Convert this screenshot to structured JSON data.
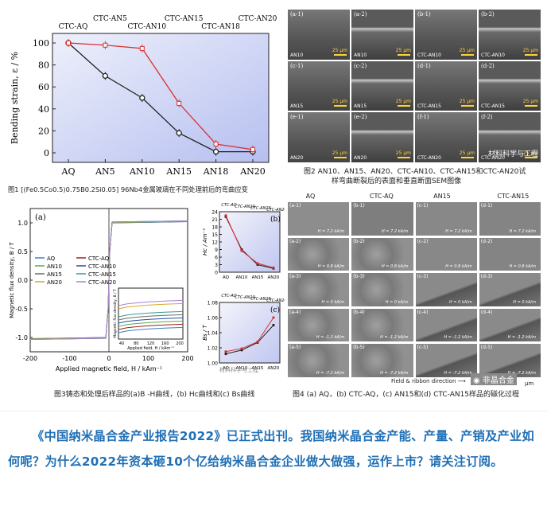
{
  "fig1": {
    "series_labels": [
      "CTC-AQ",
      "CTC-AN5",
      "CTC-AN10",
      "CTC-AN15",
      "CTC-AN18",
      "CTC-AN20"
    ],
    "ylabel": "Bending strain, ε / %",
    "caption": "图1 [(Fe0.5Co0.5)0.75B0.2Si0.05] 96Nb4金属玻璃在不同处理前后的弯曲应变",
    "chart_data": {
      "type": "line",
      "categories": [
        "AQ",
        "AN5",
        "AN10",
        "AN15",
        "AN18",
        "AN20"
      ],
      "ylabel": "Bending strain, ε / %",
      "ylim": [
        0,
        100
      ],
      "yticks": [
        0,
        20,
        40,
        60,
        80,
        100
      ],
      "series": [
        {
          "values": [
            100,
            70,
            50,
            18,
            1,
            1
          ],
          "color": "#222222"
        },
        {
          "values": [
            100,
            98,
            95,
            45,
            8,
            3
          ],
          "color": "#d83030"
        }
      ]
    }
  },
  "fig2": {
    "caption_line1": "图2 AN10、AN15、AN20、CTC-AN10、CTC-AN15和CTC-AN20试",
    "caption_line2": "样弯曲断裂后的表面和垂直断面SEM图像",
    "watermark": "材料科学与工程",
    "panels": [
      {
        "label": "(a-1)",
        "sample": "AN10",
        "scale": "25 μm"
      },
      {
        "label": "(a-2)",
        "sample": "AN10",
        "scale": "25 μm"
      },
      {
        "label": "(b-1)",
        "sample": "CTC-AN10",
        "scale": "25 μm"
      },
      {
        "label": "(b-2)",
        "sample": "CTC-AN10",
        "scale": "25 μm"
      },
      {
        "label": "(c-1)",
        "sample": "AN15",
        "scale": "25 μm"
      },
      {
        "label": "(c-2)",
        "sample": "AN15",
        "scale": "25 μm"
      },
      {
        "label": "(d-1)",
        "sample": "CTC-AN15",
        "scale": "25 μm"
      },
      {
        "label": "(d-2)",
        "sample": "CTC-AN15",
        "scale": "25 μm"
      },
      {
        "label": "(e-1)",
        "sample": "AN20",
        "scale": "25 μm"
      },
      {
        "label": "(e-2)",
        "sample": "AN20",
        "scale": "25 μm"
      },
      {
        "label": "(f-1)",
        "sample": "CTC-AN20",
        "scale": "25 μm"
      },
      {
        "label": "(f-2)",
        "sample": "CTC-AN20",
        "scale": "25 μm"
      }
    ]
  },
  "fig3": {
    "caption": "图3铸态和处理后样品的(a)B -H曲线，(b) Hc曲线和(c) Bs曲线",
    "a": {
      "label": "(a)",
      "ylabel": "Magnetic flux density, B / T",
      "xlabel": "Applied magnetic field, H / kAm⁻¹",
      "xticks": [
        "-200",
        "-100",
        "0",
        "100",
        "200"
      ],
      "yticks": [
        "1.0",
        "0.5",
        "0.0",
        "-0.5",
        "-1.0"
      ],
      "legend": [
        {
          "name": "AQ",
          "color": "#3b82c4"
        },
        {
          "name": "CTC-AQ",
          "color": "#9c1f1f"
        },
        {
          "name": "AN10",
          "color": "#5aa84a"
        },
        {
          "name": "CTC-AN10",
          "color": "#1f4f9c"
        },
        {
          "name": "AN15",
          "color": "#6b6b6b"
        },
        {
          "name": "CTC-AN15",
          "color": "#3a9a8a"
        },
        {
          "name": "AN20",
          "color": "#d6a82a"
        },
        {
          "name": "CTC-AN20",
          "color": "#a982d6"
        }
      ],
      "inset_ylabel": "Magnetic flux density, B / T",
      "inset_xlabel": "Applied field, H / kAm⁻¹",
      "inset_xticks": [
        "40",
        "80",
        "120",
        "160",
        "200"
      ]
    },
    "b": {
      "label": "(b)",
      "ylabel": "Hc / Am⁻¹",
      "series_labels": [
        "CTC-AQ",
        "CTC-AN10",
        "CTC-AN15",
        "CTC-AN20"
      ],
      "chart_data": {
        "type": "line",
        "categories": [
          "AQ",
          "AN10",
          "AN15",
          "AN20"
        ],
        "ylim": [
          0,
          24
        ],
        "yticks": [
          0,
          3,
          6,
          9,
          12,
          15,
          18,
          21,
          24
        ],
        "series": [
          {
            "values": [
              22,
              9,
              3,
              1.5
            ],
            "color": "#222222"
          },
          {
            "values": [
              22.5,
              8.5,
              3.5,
              1.8
            ],
            "color": "#d83030"
          }
        ]
      }
    },
    "c": {
      "label": "(c)",
      "ylabel": "Bs / T",
      "series_labels": [
        "CTC-AQ",
        "CTC-AN10",
        "CTC-AN15",
        "CTC-AN20"
      ],
      "chart_data": {
        "type": "line",
        "categories": [
          "AQ",
          "AN10",
          "AN15",
          "AN20"
        ],
        "ylim": [
          1.0,
          1.08
        ],
        "yticks": [
          "1.00",
          "1.02",
          "1.04",
          "1.06",
          "1.08"
        ],
        "series": [
          {
            "values": [
              1.012,
              1.017,
              1.027,
              1.05
            ],
            "color": "#222222"
          },
          {
            "values": [
              1.015,
              1.019,
              1.028,
              1.06
            ],
            "color": "#d83030"
          }
        ]
      }
    },
    "watermark": "材料科学与工程"
  },
  "fig4": {
    "col_headers": [
      "AQ",
      "CTC-AQ",
      "AN15",
      "CTC-AN15"
    ],
    "row_fields": [
      "H = 7.2 kA/m",
      "H = 0.8 kA/m",
      "H = 0 kA/m",
      "H = -1.2 kA/m",
      "H = -7.2 kA/m"
    ],
    "rows": [
      [
        "(a-1)",
        "(b-1)",
        "(c-1)",
        "(d-1)"
      ],
      [
        "(a-2)",
        "(b-2)",
        "(c-2)",
        "(d-2)"
      ],
      [
        "(a-3)",
        "(b-3)",
        "(c-3)",
        "(d-3)"
      ],
      [
        "(a-4)",
        "(b-4)",
        "(c-4)",
        "(d-4)"
      ],
      [
        "(a-5)",
        "(b-5)",
        "(c-5)",
        "(d-5)"
      ]
    ],
    "direction": "Field & ribbon direction",
    "scale": "μm",
    "watermark": "非晶合金",
    "caption": "图4 (a) AQ，(b) CTC-AQ，(c) AN15和(d) CTC-AN15样品的磁化过程"
  },
  "paragraph": "《中国纳米晶合金产业报告2022》已正式出刊。我国纳米晶合金产能、产量、产销及产业如何呢？为什么2022年资本砸10个亿给纳米晶合金企业做大做强，运作上市？请关注订阅。"
}
